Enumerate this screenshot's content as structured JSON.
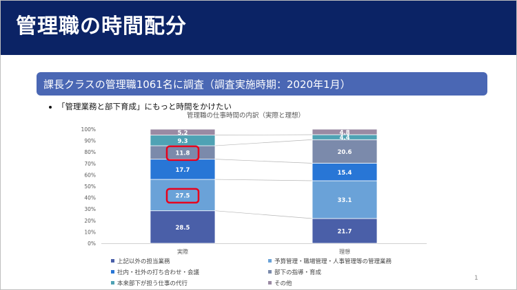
{
  "slide": {
    "title": "管理職の時間配分",
    "subtitle": "課長クラスの管理職1061名に調査（調査実施時期：2020年1月）",
    "bullet": "「管理業務と部下育成」にもっと時間をかけたい",
    "page_number": "1"
  },
  "colors": {
    "title_bar": "#0b2365",
    "subtitle_box": "#4a67b4",
    "highlight": "#e8001c"
  },
  "chart_data": {
    "type": "bar",
    "stacked": true,
    "percent": true,
    "title": "管理職の仕事時間の内訳（実際と理想）",
    "categories": [
      "実際",
      "理想"
    ],
    "ylim": [
      0,
      100
    ],
    "y_ticks": [
      "0%",
      "10%",
      "20%",
      "30%",
      "40%",
      "50%",
      "60%",
      "70%",
      "80%",
      "90%",
      "100%"
    ],
    "grid": false,
    "legend_position": "bottom",
    "series": [
      {
        "name": "上記以外の担当業務",
        "values": [
          28.5,
          21.7
        ],
        "labels": [
          "28.5",
          "21.7"
        ],
        "color": "#4a5fa8"
      },
      {
        "name": "予算管理・職場管理・人事管理等の管理業務",
        "values": [
          27.5,
          33.1
        ],
        "labels": [
          "27.5",
          "33.1"
        ],
        "color": "#6aa2d8"
      },
      {
        "name": "社内・社外の打ち合わせ・会議",
        "values": [
          17.7,
          15.4
        ],
        "labels": [
          "17.7",
          "15.4"
        ],
        "color": "#2876d6"
      },
      {
        "name": "部下の指導・育成",
        "values": [
          11.8,
          20.6
        ],
        "labels": [
          "11.8",
          "20.6"
        ],
        "color": "#7b8aab"
      },
      {
        "name": "本来部下が担う仕事の代行",
        "values": [
          9.3,
          4.4
        ],
        "labels": [
          "9.3",
          "4.4"
        ],
        "color": "#4fa2b4"
      },
      {
        "name": "その他",
        "values": [
          5.2,
          4.8
        ],
        "labels": [
          "5.2",
          "4.8"
        ],
        "color": "#9a8aa3"
      }
    ],
    "highlighted": [
      {
        "series": "予算管理・職場管理・人事管理等の管理業務",
        "category": "実際"
      },
      {
        "series": "部下の指導・育成",
        "category": "実際"
      }
    ]
  }
}
